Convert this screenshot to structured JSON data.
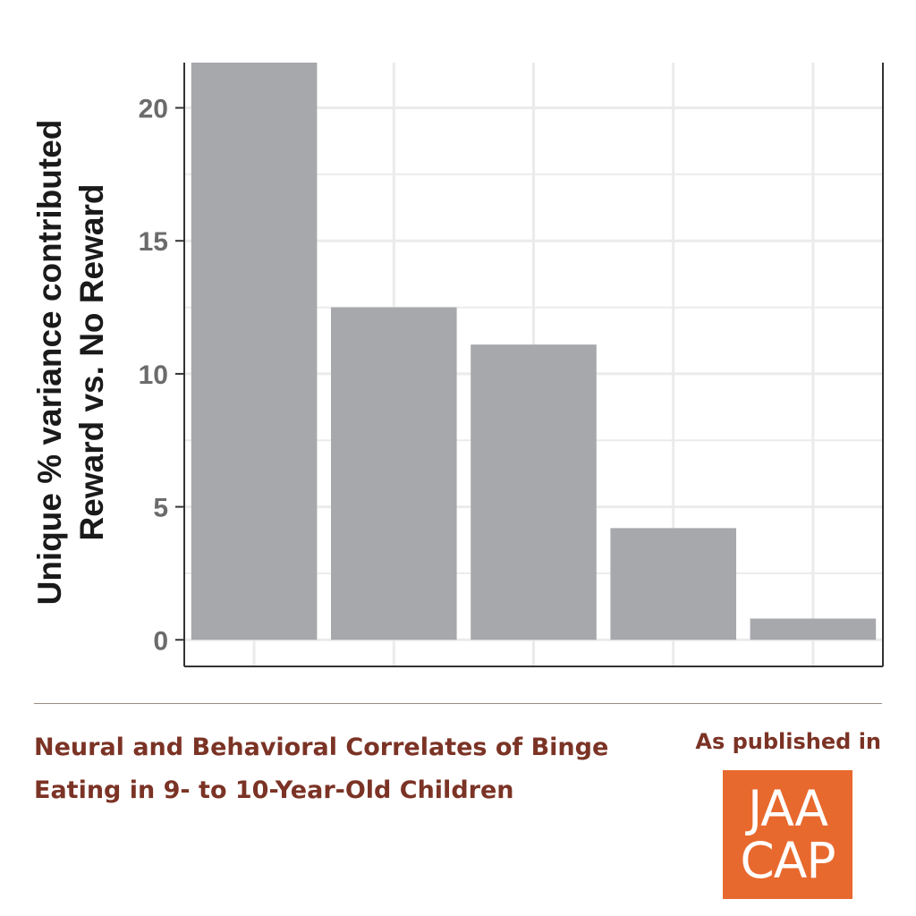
{
  "chart_data": {
    "type": "bar",
    "ylabel_lines": [
      "Unique % variance contributed",
      "Reward vs. No Reward"
    ],
    "xlabel": "",
    "categories": [
      "",
      "",
      "",
      "",
      ""
    ],
    "values": [
      21.7,
      12.5,
      11.1,
      4.2,
      0.8
    ],
    "ylim": [
      -1,
      21.7
    ],
    "yticks": [
      0,
      5,
      10,
      15,
      20
    ],
    "grid": true,
    "colors": {
      "bar": "#a7a8ac",
      "grid": "#ebebeb",
      "axis": "#333333",
      "tick_label": "#6b6b6b"
    }
  },
  "footer": {
    "caption": "Neural and Behavioral Correlates of Binge Eating in 9- to 10-Year-Old Children",
    "published_label": "As published in",
    "logo_line1": "JAA",
    "logo_line2": "CAP",
    "colors": {
      "caption": "#7b3325",
      "logo_bg": "#e8692d"
    }
  }
}
